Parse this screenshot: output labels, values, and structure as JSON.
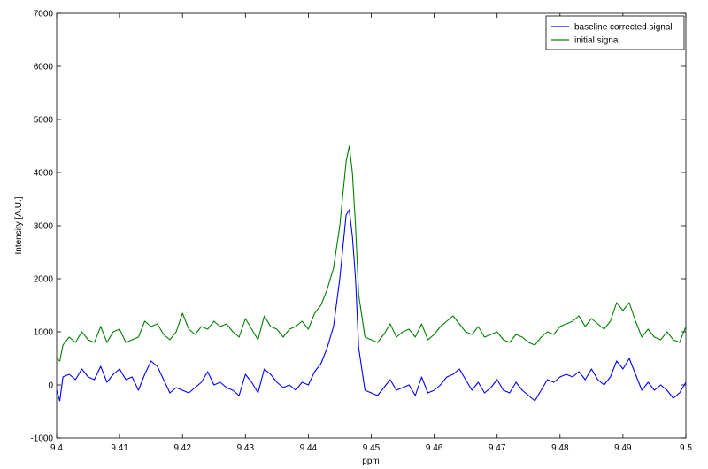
{
  "chart_data": {
    "type": "line",
    "title": "",
    "xlabel": "ppm",
    "ylabel": "Intensity [A.U.]",
    "xlim": [
      9.4,
      9.5
    ],
    "ylim": [
      -1000,
      7000
    ],
    "grid": false,
    "legend_position": "top-right",
    "x_ticks": [
      "9.4",
      "9.41",
      "9.42",
      "9.43",
      "9.44",
      "9.45",
      "9.46",
      "9.47",
      "9.48",
      "9.49",
      "9.5"
    ],
    "y_ticks": [
      "-1000",
      "0",
      "1000",
      "2000",
      "3000",
      "4000",
      "5000",
      "6000",
      "7000"
    ],
    "x_tick_values": [
      9.4,
      9.41,
      9.42,
      9.43,
      9.44,
      9.45,
      9.46,
      9.47,
      9.48,
      9.49,
      9.5
    ],
    "y_tick_values": [
      -1000,
      0,
      1000,
      2000,
      3000,
      4000,
      5000,
      6000,
      7000
    ],
    "series": [
      {
        "name": "baseline corrected signal",
        "color": "#0000ff",
        "x": [
          9.4,
          9.4005,
          9.401,
          9.402,
          9.403,
          9.404,
          9.405,
          9.406,
          9.407,
          9.408,
          9.409,
          9.41,
          9.411,
          9.412,
          9.413,
          9.414,
          9.415,
          9.416,
          9.417,
          9.418,
          9.419,
          9.42,
          9.421,
          9.422,
          9.423,
          9.424,
          9.425,
          9.426,
          9.427,
          9.428,
          9.429,
          9.43,
          9.431,
          9.432,
          9.433,
          9.434,
          9.435,
          9.436,
          9.437,
          9.438,
          9.439,
          9.44,
          9.441,
          9.442,
          9.443,
          9.444,
          9.445,
          9.446,
          9.4465,
          9.447,
          9.4475,
          9.448,
          9.449,
          9.45,
          9.451,
          9.452,
          9.453,
          9.454,
          9.455,
          9.456,
          9.457,
          9.458,
          9.459,
          9.46,
          9.461,
          9.462,
          9.463,
          9.464,
          9.465,
          9.466,
          9.467,
          9.468,
          9.469,
          9.47,
          9.471,
          9.472,
          9.473,
          9.474,
          9.475,
          9.476,
          9.477,
          9.478,
          9.479,
          9.48,
          9.481,
          9.482,
          9.483,
          9.484,
          9.485,
          9.486,
          9.487,
          9.488,
          9.489,
          9.49,
          9.491,
          9.492,
          9.493,
          9.494,
          9.495,
          9.496,
          9.497,
          9.498,
          9.499,
          9.5
        ],
        "y": [
          -100,
          -300,
          150,
          200,
          100,
          300,
          150,
          100,
          350,
          50,
          200,
          300,
          100,
          150,
          -100,
          200,
          450,
          350,
          100,
          -150,
          -50,
          -100,
          -150,
          -50,
          50,
          250,
          0,
          50,
          -50,
          -100,
          -200,
          200,
          50,
          -150,
          300,
          200,
          50,
          -50,
          0,
          -100,
          50,
          0,
          250,
          400,
          700,
          1100,
          2000,
          3200,
          3300,
          2800,
          2000,
          700,
          -100,
          -150,
          -200,
          -50,
          100,
          -100,
          -50,
          0,
          -200,
          150,
          -150,
          -100,
          0,
          150,
          200,
          300,
          100,
          -100,
          50,
          -150,
          -50,
          100,
          -100,
          -150,
          50,
          -100,
          -200,
          -300,
          -100,
          100,
          50,
          150,
          200,
          150,
          250,
          100,
          300,
          100,
          0,
          150,
          450,
          300,
          500,
          200,
          -100,
          50,
          -100,
          0,
          -100,
          -250,
          -150,
          50
        ]
      },
      {
        "name": "initial signal",
        "color": "#008000",
        "x": [
          9.4,
          9.4005,
          9.401,
          9.402,
          9.403,
          9.404,
          9.405,
          9.406,
          9.407,
          9.408,
          9.409,
          9.41,
          9.411,
          9.412,
          9.413,
          9.414,
          9.415,
          9.416,
          9.417,
          9.418,
          9.419,
          9.42,
          9.421,
          9.422,
          9.423,
          9.424,
          9.425,
          9.426,
          9.427,
          9.428,
          9.429,
          9.43,
          9.431,
          9.432,
          9.433,
          9.434,
          9.435,
          9.436,
          9.437,
          9.438,
          9.439,
          9.44,
          9.441,
          9.442,
          9.443,
          9.444,
          9.445,
          9.446,
          9.4465,
          9.447,
          9.4475,
          9.448,
          9.449,
          9.45,
          9.451,
          9.452,
          9.453,
          9.454,
          9.455,
          9.456,
          9.457,
          9.458,
          9.459,
          9.46,
          9.461,
          9.462,
          9.463,
          9.464,
          9.465,
          9.466,
          9.467,
          9.468,
          9.469,
          9.47,
          9.471,
          9.472,
          9.473,
          9.474,
          9.475,
          9.476,
          9.477,
          9.478,
          9.479,
          9.48,
          9.481,
          9.482,
          9.483,
          9.484,
          9.485,
          9.486,
          9.487,
          9.488,
          9.489,
          9.49,
          9.491,
          9.492,
          9.493,
          9.494,
          9.495,
          9.496,
          9.497,
          9.498,
          9.499,
          9.5
        ],
        "y": [
          500,
          450,
          750,
          900,
          800,
          1000,
          850,
          800,
          1100,
          800,
          1000,
          1050,
          800,
          850,
          900,
          1200,
          1100,
          1150,
          950,
          850,
          1000,
          1350,
          1050,
          950,
          1100,
          1050,
          1200,
          1100,
          1150,
          1000,
          900,
          1250,
          1050,
          850,
          1300,
          1100,
          1050,
          900,
          1050,
          1100,
          1200,
          1050,
          1350,
          1500,
          1800,
          2200,
          3000,
          4200,
          4500,
          4000,
          3000,
          1700,
          900,
          850,
          800,
          950,
          1150,
          900,
          1000,
          1050,
          900,
          1150,
          850,
          950,
          1100,
          1200,
          1300,
          1150,
          1000,
          950,
          1100,
          900,
          950,
          1000,
          850,
          800,
          950,
          900,
          800,
          750,
          900,
          1000,
          950,
          1100,
          1150,
          1200,
          1300,
          1100,
          1250,
          1150,
          1050,
          1200,
          1550,
          1400,
          1550,
          1200,
          900,
          1050,
          900,
          850,
          1000,
          850,
          800,
          1100
        ]
      }
    ]
  }
}
